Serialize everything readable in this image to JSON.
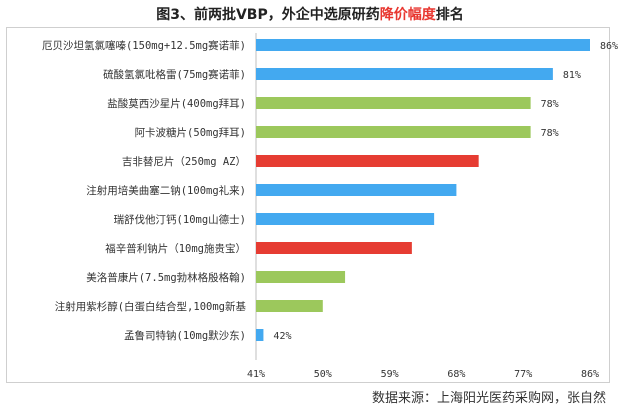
{
  "title": {
    "prefix": "图3、前两批VBP，外企中选原研药",
    "highlight": "降价幅度",
    "suffix": "排名"
  },
  "source": "数据来源：上海阳光医药采购网，张自然",
  "colors": {
    "blue": "#43a9f0",
    "green": "#9cc85c",
    "red": "#e63c32"
  },
  "chart_data": {
    "type": "bar",
    "orientation": "horizontal",
    "categories": [
      "厄贝沙坦氢氯噻嗪(150mg+12.5mg赛诺菲)",
      "硫酸氢氯吡格雷(75mg赛诺菲)",
      "盐酸莫西沙星片(400mg拜耳)",
      "阿卡波糖片(50mg拜耳)",
      "吉非替尼片（250mg AZ）",
      "注射用培美曲塞二钠(100mg礼来)",
      "瑞舒伐他汀钙(10mg山德士)",
      "福辛普利钠片（10mg施贵宝）",
      "美洛普康片(7.5mg勃林格殷格翰)",
      "注射用紫杉醇(白蛋白结合型,100mg新基",
      "孟鲁司特钠(10mg默沙东)"
    ],
    "values": [
      86,
      81,
      78,
      78,
      71,
      68,
      65,
      62,
      53,
      50,
      42
    ],
    "labels": [
      "86%",
      "81%",
      "78%",
      "78%",
      "",
      "",
      "",
      "",
      "",
      "",
      "42%"
    ],
    "bar_colors": [
      "blue",
      "blue",
      "green",
      "green",
      "red",
      "blue",
      "blue",
      "red",
      "green",
      "green",
      "blue"
    ],
    "xlim": [
      41,
      86
    ],
    "xticks": [
      "41%",
      "50%",
      "59%",
      "68%",
      "77%",
      "86%"
    ],
    "xtick_values": [
      41,
      50,
      59,
      68,
      77,
      86
    ],
    "grid": false,
    "legend": "none"
  }
}
